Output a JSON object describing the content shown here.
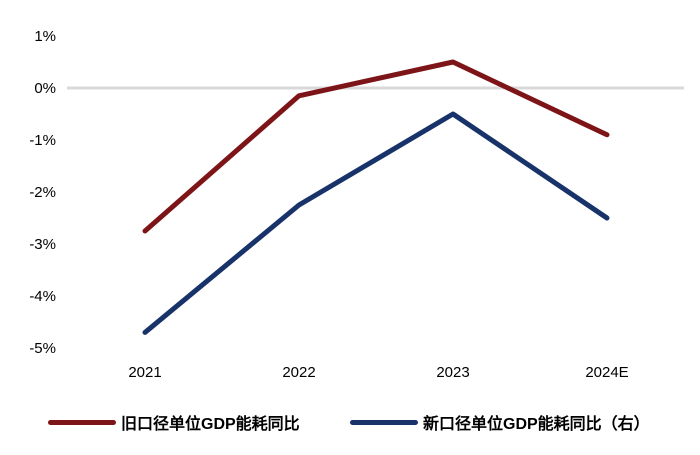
{
  "chart_data": {
    "type": "line",
    "title": "",
    "xlabel": "",
    "ylabel": "",
    "unit": "%",
    "categories": [
      "2021",
      "2022",
      "2023",
      "2024E"
    ],
    "series": [
      {
        "name": "旧口径单位GDP能耗同比",
        "color": "#7D1518",
        "values": [
          -2.75,
          -0.15,
          0.5,
          -0.9
        ]
      },
      {
        "name": "新口径单位GDP能耗同比（右）",
        "color": "#17336A",
        "values": [
          -4.7,
          -2.25,
          -0.5,
          -2.5
        ]
      }
    ],
    "ylim": [
      -5,
      1
    ],
    "yticks": [
      1,
      0,
      -1,
      -2,
      -3,
      -4,
      -5
    ],
    "ytick_labels": [
      "1%",
      "0%",
      "-1%",
      "-2%",
      "-3%",
      "-4%",
      "-5%"
    ],
    "grid": "zero-line-only",
    "zero_gridline": {
      "value": 0,
      "color": "#D9D9D9"
    },
    "legend_position": "bottom",
    "axis_text_color": "#000000",
    "line_width": 5
  }
}
